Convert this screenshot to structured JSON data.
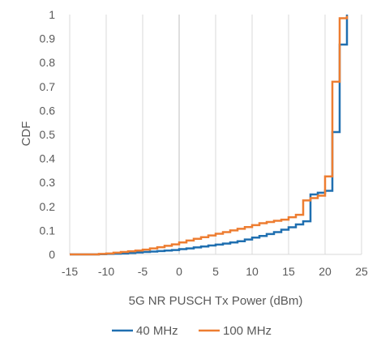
{
  "chart_data": {
    "type": "line",
    "title": "",
    "xlabel": "5G NR PUSCH Tx Power (dBm)",
    "ylabel": "CDF",
    "xlim": [
      -15,
      25
    ],
    "ylim": [
      0,
      1
    ],
    "x_ticks": [
      -15,
      -10,
      -5,
      0,
      5,
      10,
      15,
      20,
      25
    ],
    "y_ticks": [
      0,
      0.1,
      0.2,
      0.3,
      0.4,
      0.5,
      0.6,
      0.7,
      0.8,
      0.9,
      1
    ],
    "grid": "vertical",
    "legend_position": "bottom",
    "series": [
      {
        "name": "40 MHz",
        "color": "#1f6fb0",
        "x": [
          -15,
          -12,
          -11,
          -10,
          -9,
          -8,
          -7,
          -6,
          -5,
          -4,
          -3,
          -2,
          -1,
          0,
          1,
          2,
          3,
          4,
          5,
          6,
          7,
          8,
          9,
          10,
          11,
          12,
          13,
          14,
          15,
          16,
          17,
          18,
          19,
          20,
          21,
          22,
          23
        ],
        "y": [
          0,
          0,
          0.001,
          0.002,
          0.003,
          0.004,
          0.006,
          0.008,
          0.01,
          0.012,
          0.014,
          0.016,
          0.018,
          0.022,
          0.025,
          0.029,
          0.033,
          0.037,
          0.041,
          0.045,
          0.05,
          0.055,
          0.062,
          0.07,
          0.077,
          0.085,
          0.093,
          0.103,
          0.113,
          0.125,
          0.138,
          0.25,
          0.257,
          0.265,
          0.51,
          0.875,
          1.0
        ],
        "y_final": 1.0
      },
      {
        "name": "100 MHz",
        "color": "#ed7d31",
        "x": [
          -12,
          -11,
          -10,
          -9,
          -8,
          -7,
          -6,
          -5,
          -4,
          -3,
          -2,
          -1,
          0,
          1,
          2,
          3,
          4,
          5,
          6,
          7,
          8,
          9,
          10,
          11,
          12,
          13,
          14,
          15,
          16,
          17,
          18,
          19,
          20,
          21,
          22,
          23
        ],
        "y": [
          0,
          0.002,
          0.004,
          0.007,
          0.01,
          0.013,
          0.016,
          0.02,
          0.025,
          0.03,
          0.036,
          0.042,
          0.05,
          0.058,
          0.065,
          0.072,
          0.079,
          0.086,
          0.093,
          0.1,
          0.107,
          0.114,
          0.122,
          0.13,
          0.135,
          0.14,
          0.145,
          0.155,
          0.165,
          0.225,
          0.235,
          0.245,
          0.325,
          0.72,
          0.985,
          0.995
        ],
        "y_final": 0.995
      }
    ]
  }
}
